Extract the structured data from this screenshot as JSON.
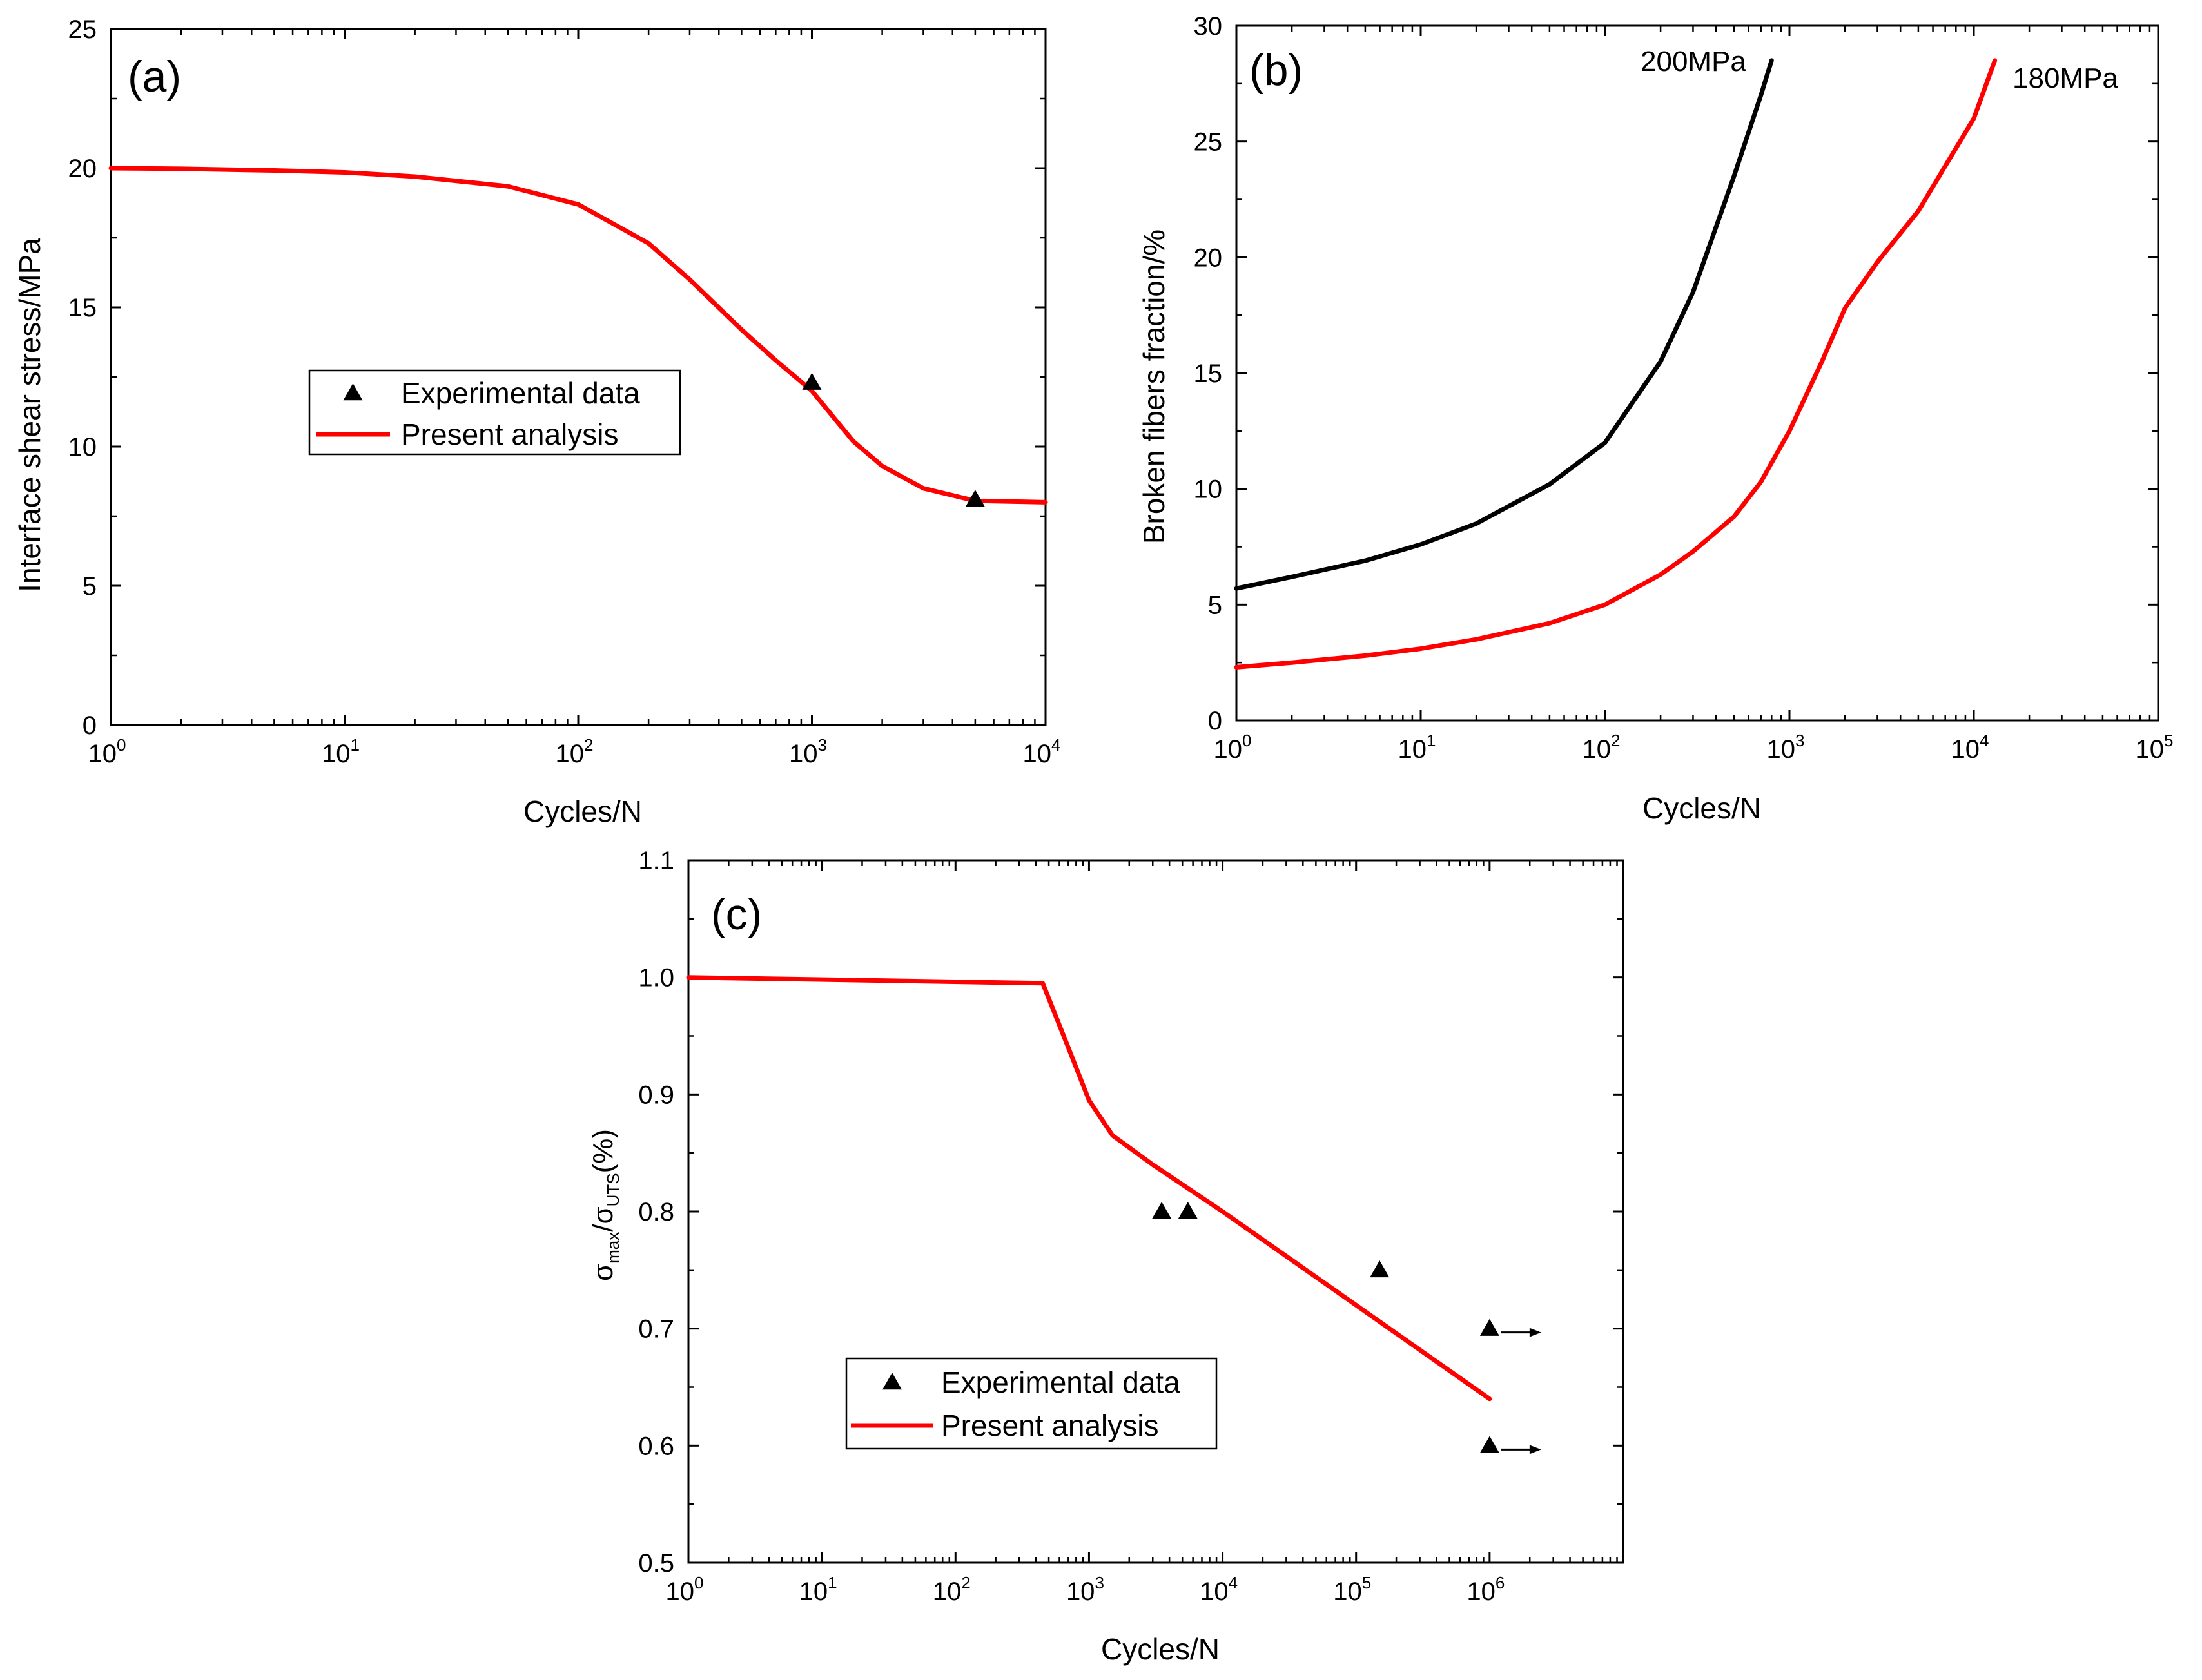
{
  "chart_data": [
    {
      "panel": "a",
      "type": "line",
      "panel_label": "(a)",
      "xlabel": "Cycles/N",
      "ylabel": "Interface shear stress/MPa",
      "x_scale": "log",
      "xlim": [
        1,
        10000
      ],
      "ylim": [
        0,
        25
      ],
      "x_ticks": [
        {
          "base": "10",
          "exp": "0"
        },
        {
          "base": "10",
          "exp": "1"
        },
        {
          "base": "10",
          "exp": "2"
        },
        {
          "base": "10",
          "exp": "3"
        },
        {
          "base": "10",
          "exp": "4"
        }
      ],
      "y_ticks": [
        "0",
        "5",
        "10",
        "15",
        "20",
        "25"
      ],
      "grid": false,
      "legend": {
        "position": "center-left",
        "entries": [
          {
            "label": "Experimental data",
            "kind": "marker"
          },
          {
            "label": "Present analysis",
            "kind": "line"
          }
        ]
      },
      "series": [
        {
          "name": "Present analysis",
          "kind": "line",
          "color": "#ff0000",
          "x": [
            1,
            2,
            5,
            10,
            20,
            50,
            100,
            200,
            300,
            500,
            700,
            1000,
            1500,
            2000,
            3000,
            5000,
            10000
          ],
          "y": [
            20.0,
            19.98,
            19.92,
            19.85,
            19.7,
            19.35,
            18.7,
            17.3,
            16.0,
            14.2,
            13.1,
            12.0,
            10.2,
            9.3,
            8.5,
            8.05,
            8.0
          ]
        },
        {
          "name": "Experimental data",
          "kind": "scatter",
          "marker": "triangle",
          "color": "#000000",
          "x": [
            1000,
            5000
          ],
          "y": [
            12.3,
            8.1
          ]
        }
      ]
    },
    {
      "panel": "b",
      "type": "line",
      "panel_label": "(b)",
      "xlabel": "Cycles/N",
      "ylabel": "Broken fibers fraction/%",
      "x_scale": "log",
      "xlim": [
        1,
        100000
      ],
      "ylim": [
        0,
        30
      ],
      "x_ticks": [
        {
          "base": "10",
          "exp": "0"
        },
        {
          "base": "10",
          "exp": "1"
        },
        {
          "base": "10",
          "exp": "2"
        },
        {
          "base": "10",
          "exp": "3"
        },
        {
          "base": "10",
          "exp": "4"
        },
        {
          "base": "10",
          "exp": "5"
        }
      ],
      "y_ticks": [
        "0",
        "5",
        "10",
        "15",
        "20",
        "25",
        "30"
      ],
      "grid": false,
      "series": [
        {
          "name": "200MPa",
          "kind": "line",
          "color": "#000000",
          "x": [
            1,
            2,
            5,
            10,
            20,
            50,
            100,
            200,
            300,
            500,
            700,
            800
          ],
          "y": [
            5.7,
            6.2,
            6.9,
            7.6,
            8.5,
            10.2,
            12.0,
            15.5,
            18.5,
            23.5,
            27.0,
            28.5
          ]
        },
        {
          "name": "180MPa",
          "kind": "line",
          "color": "#ff0000",
          "x": [
            1,
            2,
            5,
            10,
            20,
            50,
            100,
            200,
            300,
            500,
            700,
            1000,
            1500,
            2000,
            3000,
            5000,
            10000,
            13000
          ],
          "y": [
            2.3,
            2.5,
            2.8,
            3.1,
            3.5,
            4.2,
            5.0,
            6.3,
            7.3,
            8.8,
            10.3,
            12.5,
            15.5,
            17.8,
            19.8,
            22.0,
            26.0,
            28.5
          ]
        }
      ]
    },
    {
      "panel": "c",
      "type": "line",
      "panel_label": "(c)",
      "xlabel": "Cycles/N",
      "ylabel": {
        "sigma": "σ",
        "max": "max",
        "slash": "/",
        "uts": "UTS",
        "pct": "(%)"
      },
      "x_scale": "log",
      "xlim": [
        1,
        10000000
      ],
      "ylim": [
        0.5,
        1.1
      ],
      "x_ticks": [
        {
          "base": "10",
          "exp": "0"
        },
        {
          "base": "10",
          "exp": "1"
        },
        {
          "base": "10",
          "exp": "2"
        },
        {
          "base": "10",
          "exp": "3"
        },
        {
          "base": "10",
          "exp": "4"
        },
        {
          "base": "10",
          "exp": "5"
        },
        {
          "base": "10",
          "exp": "6"
        }
      ],
      "y_ticks": [
        "0.5",
        "0.6",
        "0.7",
        "0.8",
        "0.9",
        "1.0",
        "1.1"
      ],
      "grid": false,
      "legend": {
        "position": "lower-left",
        "entries": [
          {
            "label": "Experimental data",
            "kind": "marker"
          },
          {
            "label": "Present analysis",
            "kind": "line"
          }
        ]
      },
      "series": [
        {
          "name": "Present analysis",
          "kind": "line",
          "color": "#ff0000",
          "x": [
            1,
            450,
            700,
            1000,
            1500,
            3000,
            10000,
            100000,
            1000000
          ],
          "y": [
            1.0,
            0.995,
            0.94,
            0.895,
            0.865,
            0.84,
            0.8,
            0.72,
            0.64
          ]
        },
        {
          "name": "Experimental data",
          "kind": "scatter",
          "marker": "triangle",
          "color": "#000000",
          "x": [
            3500,
            5500,
            150000,
            1000000,
            1000000
          ],
          "y": [
            0.8,
            0.8,
            0.75,
            0.7,
            0.6
          ],
          "runout": [
            false,
            false,
            false,
            true,
            true
          ]
        }
      ]
    }
  ]
}
